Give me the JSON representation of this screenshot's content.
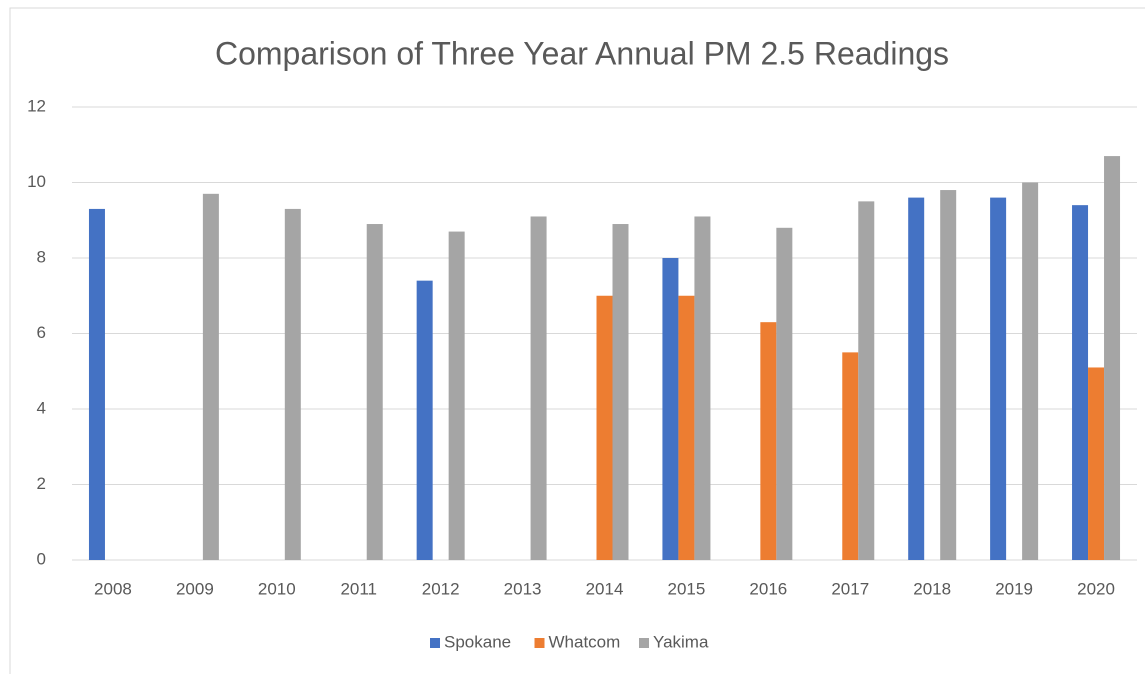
{
  "chart_data": {
    "type": "bar",
    "title": "Comparison of Three Year Annual PM 2.5 Readings",
    "categories": [
      "2008",
      "2009",
      "2010",
      "2011",
      "2012",
      "2013",
      "2014",
      "2015",
      "2016",
      "2017",
      "2018",
      "2019",
      "2020"
    ],
    "series": [
      {
        "name": "Spokane",
        "color": "#4472c4",
        "values": [
          9.3,
          null,
          null,
          null,
          7.4,
          null,
          null,
          8.0,
          null,
          null,
          9.6,
          9.6,
          9.4
        ]
      },
      {
        "name": "Whatcom",
        "color": "#ed7d31",
        "values": [
          null,
          null,
          null,
          null,
          null,
          null,
          7.0,
          7.0,
          6.3,
          5.5,
          null,
          null,
          5.1
        ]
      },
      {
        "name": "Yakima",
        "color": "#a5a5a5",
        "values": [
          null,
          9.7,
          9.3,
          8.9,
          8.7,
          9.1,
          8.9,
          9.1,
          8.8,
          9.5,
          9.8,
          10.0,
          10.7
        ]
      }
    ],
    "ylim": [
      0,
      12
    ],
    "yticks": [
      0,
      2,
      4,
      6,
      8,
      10,
      12
    ],
    "grid": true,
    "legend": "bottom"
  }
}
